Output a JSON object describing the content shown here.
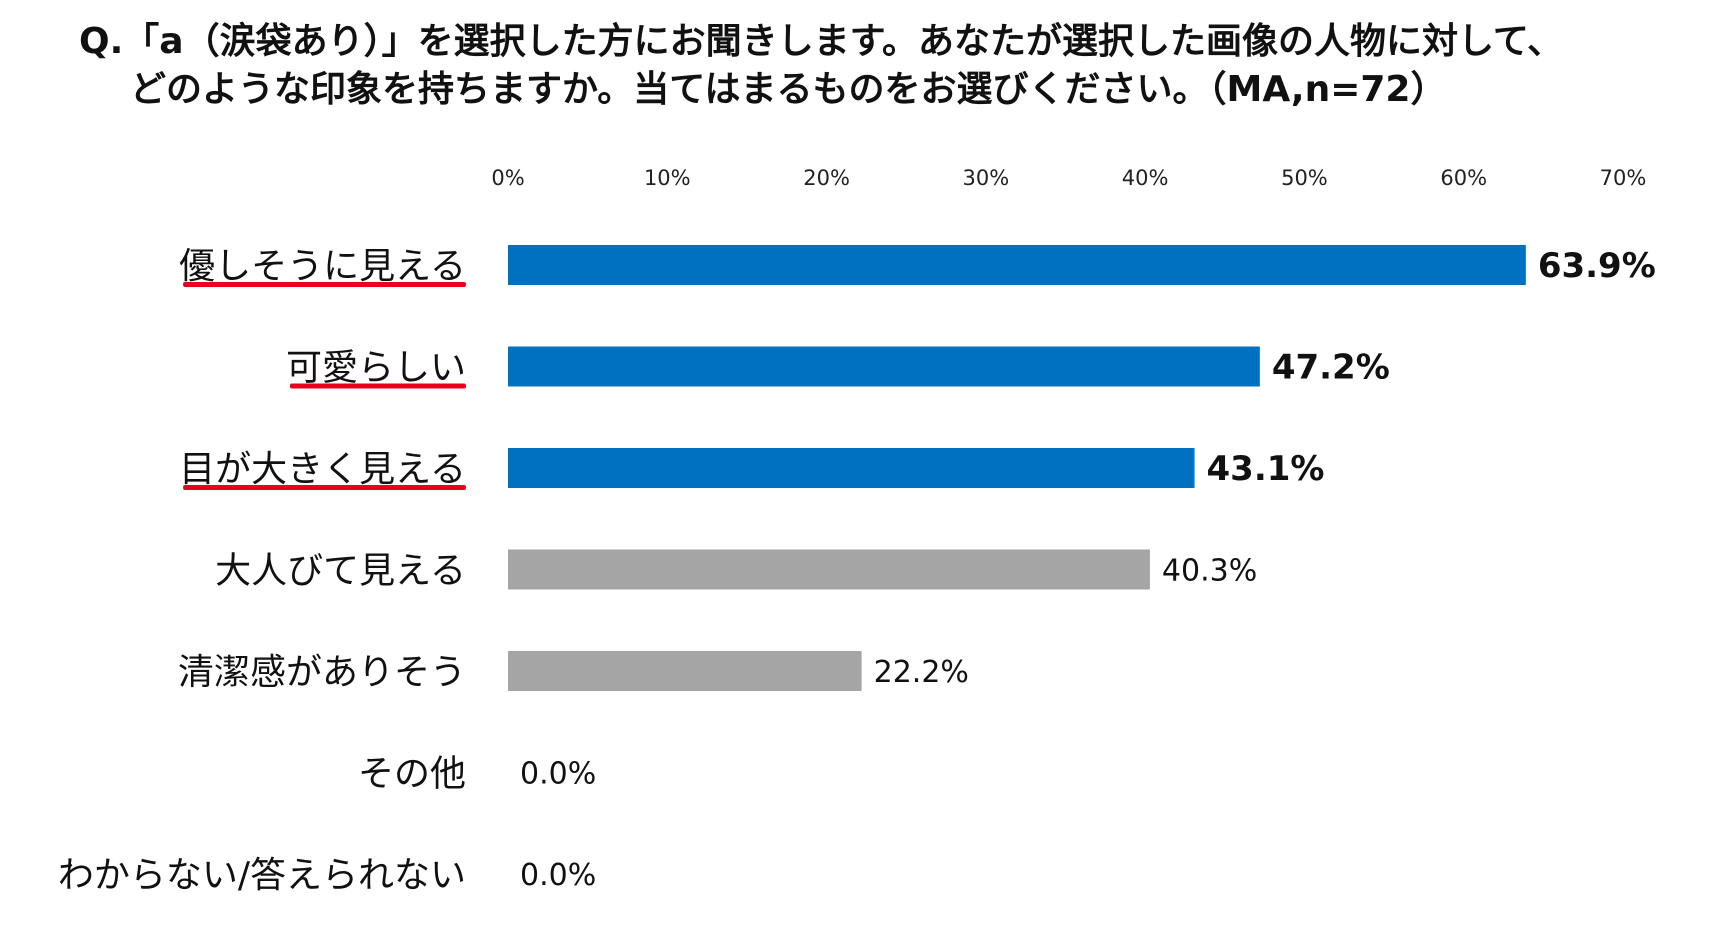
{
  "title": {
    "line1": "Q.「a（涙袋あり）」を選択した方にお聞きします。あなたが選択した画像の人物に対して、",
    "line2": "どのような印象を持ちますか。当てはまるものをお選びください。（MA,n=72）"
  },
  "colors": {
    "highlight": "#0070C0",
    "normal": "#A5A5A5",
    "underline": "#E8001C"
  },
  "chart_data": {
    "type": "bar",
    "orientation": "horizontal",
    "categories": [
      "優しそうに見える",
      "可愛らしい",
      "目が大きく見える",
      "大人びて見える",
      "清潔感がありそう",
      "その他",
      "わからない/答えられない"
    ],
    "values": [
      63.9,
      47.2,
      43.1,
      40.3,
      22.2,
      0.0,
      0.0
    ],
    "value_labels": [
      "63.9%",
      "47.2%",
      "43.1%",
      "40.3%",
      "22.2%",
      "0.0%",
      "0.0%"
    ],
    "highlighted": [
      true,
      true,
      true,
      false,
      false,
      false,
      false
    ],
    "underlined": [
      true,
      true,
      true,
      false,
      false,
      false,
      false
    ],
    "xlim": [
      0,
      70
    ],
    "x_ticks": [
      0,
      10,
      20,
      30,
      40,
      50,
      60,
      70
    ],
    "x_tick_labels": [
      "0%",
      "10%",
      "20%",
      "30%",
      "40%",
      "50%",
      "60%",
      "70%"
    ],
    "axis_position": "top",
    "grid": false,
    "legend": "none"
  }
}
